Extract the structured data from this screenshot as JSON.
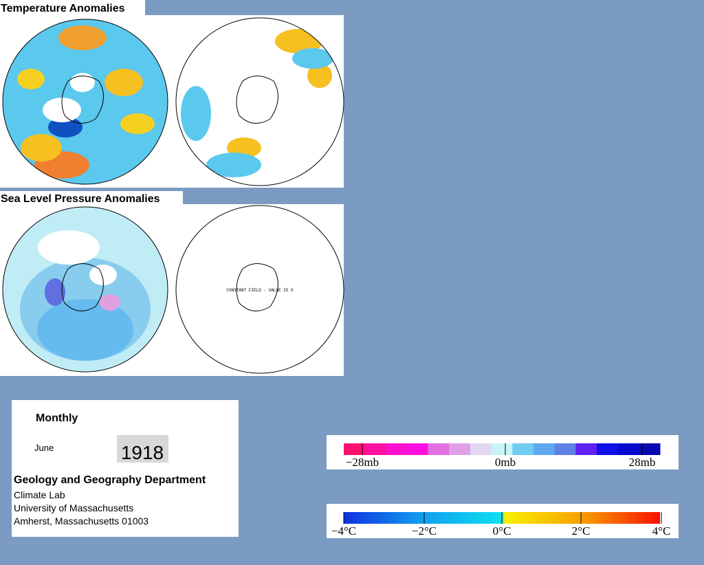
{
  "panels": [
    {
      "title": "Temperature Anomalies"
    },
    {
      "title": "Sea Level Pressure Anomalies",
      "note": "CONSTANT FIELD - VALUE IS 0"
    }
  ],
  "info": {
    "period": "Monthly",
    "month": "June",
    "year": "1918",
    "department": "Geology and Geography Department",
    "lines": [
      "Climate Lab",
      "University of Massachusetts",
      "Amherst, Massachusetts 01003"
    ]
  },
  "legends": [
    {
      "labels": [
        "−28mb",
        "0mb",
        "28mb"
      ]
    },
    {
      "labels": [
        "−4°C",
        "−2°C",
        "0°C",
        "2°C",
        "4°C"
      ]
    }
  ]
}
